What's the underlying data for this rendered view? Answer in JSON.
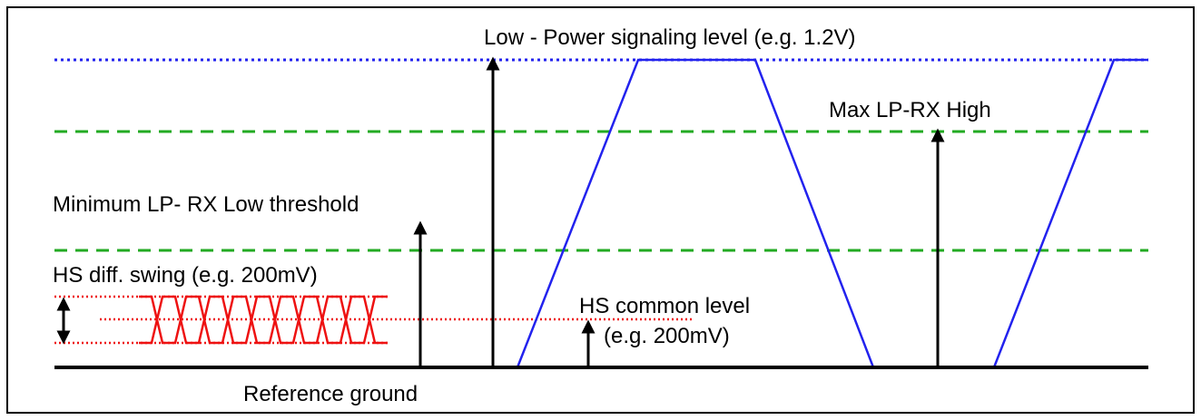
{
  "labels": {
    "lp_level": "Low - Power signaling level (e.g. 1.2V)",
    "max_lp_rx_high": "Max LP-RX High",
    "min_lp_rx_low": "Minimum LP- RX Low threshold",
    "hs_diff_swing": "HS diff. swing (e.g. 200mV)",
    "hs_common_line1": "HS common level",
    "hs_common_line2": "(e.g. 200mV)",
    "reference_ground": "Reference ground"
  },
  "colors": {
    "lp_level_line": "#2222ee",
    "threshold_lines": "#22aa22",
    "hs_signal": "#ee1111",
    "lp_waveform": "#2222ee",
    "ground": "#000000",
    "arrows": "#000000"
  }
}
